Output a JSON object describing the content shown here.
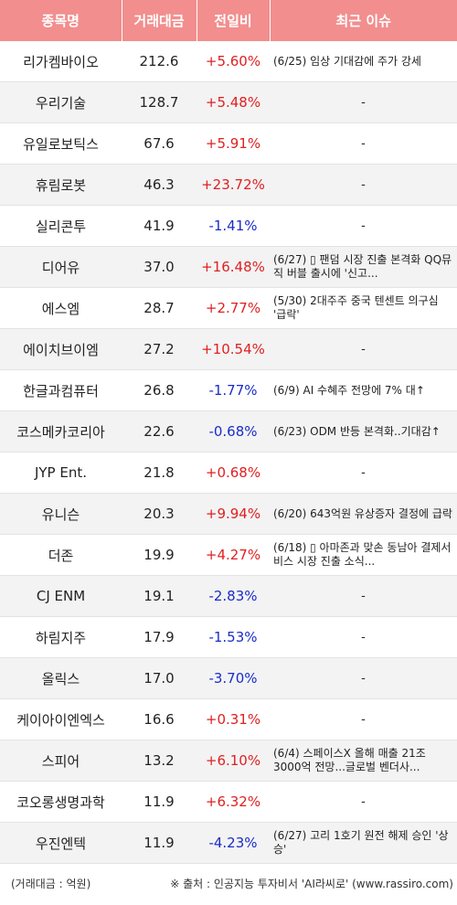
{
  "headers": [
    "종목명",
    "거래대금",
    "전일비",
    "최근 이슈"
  ],
  "rows": [
    {
      "name": "리가켐바이오",
      "volume": "212.6",
      "change": "+5.60%",
      "dir": "up",
      "issue": "(6/25) 임상 기대감에 주가 강세"
    },
    {
      "name": "우리기술",
      "volume": "128.7",
      "change": "+5.48%",
      "dir": "up",
      "issue": "-"
    },
    {
      "name": "유일로보틱스",
      "volume": "67.6",
      "change": "+5.91%",
      "dir": "up",
      "issue": "-"
    },
    {
      "name": "휴림로봇",
      "volume": "46.3",
      "change": "+23.72%",
      "dir": "up",
      "issue": "-"
    },
    {
      "name": "실리콘투",
      "volume": "41.9",
      "change": "-1.41%",
      "dir": "down",
      "issue": "-"
    },
    {
      "name": "디어유",
      "volume": "37.0",
      "change": "+16.48%",
      "dir": "up",
      "issue": "(6/27) ▯ 팬덤 시장 진출 본격화 QQ뮤직 버블 출시에 '신고..."
    },
    {
      "name": "에스엠",
      "volume": "28.7",
      "change": "+2.77%",
      "dir": "up",
      "issue": "(5/30) 2대주주 중국 텐센트 의구심 '급락'"
    },
    {
      "name": "에이치브이엠",
      "volume": "27.2",
      "change": "+10.54%",
      "dir": "up",
      "issue": "-"
    },
    {
      "name": "한글과컴퓨터",
      "volume": "26.8",
      "change": "-1.77%",
      "dir": "down",
      "issue": "(6/9) AI 수혜주 전망에 7% 대↑"
    },
    {
      "name": "코스메카코리아",
      "volume": "22.6",
      "change": "-0.68%",
      "dir": "down",
      "issue": "(6/23) ODM 반등 본격화..기대감↑"
    },
    {
      "name": "JYP Ent.",
      "volume": "21.8",
      "change": "+0.68%",
      "dir": "up",
      "issue": "-"
    },
    {
      "name": "유니슨",
      "volume": "20.3",
      "change": "+9.94%",
      "dir": "up",
      "issue": "(6/20) 643억원 유상증자 결정에 급락"
    },
    {
      "name": "더존",
      "volume": "19.9",
      "change": "+4.27%",
      "dir": "up",
      "issue": "(6/18) ▯ 아마존과 맞손 동남아 결제서비스 시장 진출 소식..."
    },
    {
      "name": "CJ ENM",
      "volume": "19.1",
      "change": "-2.83%",
      "dir": "down",
      "issue": "-"
    },
    {
      "name": "하림지주",
      "volume": "17.9",
      "change": "-1.53%",
      "dir": "down",
      "issue": "-"
    },
    {
      "name": "올릭스",
      "volume": "17.0",
      "change": "-3.70%",
      "dir": "down",
      "issue": "-"
    },
    {
      "name": "케이아이엔엑스",
      "volume": "16.6",
      "change": "+0.31%",
      "dir": "up",
      "issue": "-"
    },
    {
      "name": "스피어",
      "volume": "13.2",
      "change": "+6.10%",
      "dir": "up",
      "issue": "(6/4) 스페이스X 올해 매출 21조3000억 전망...글로벌 벤더사..."
    },
    {
      "name": "코오롱생명과학",
      "volume": "11.9",
      "change": "+6.32%",
      "dir": "up",
      "issue": "-"
    },
    {
      "name": "우진엔텍",
      "volume": "11.9",
      "change": "-4.23%",
      "dir": "down",
      "issue": "(6/27) 고리 1호기 원전 해제 승인 '상승'"
    }
  ],
  "footer": {
    "unit": "(거래대금 : 억원)",
    "source": "※ 출처 : 인공지능 투자비서 'AI라씨로' (www.rassiro.com)"
  },
  "colors": {
    "header_bg": "#f28e8e",
    "up": "#e02020",
    "down": "#1a2cc7",
    "stripe": "#f3f3f3"
  }
}
